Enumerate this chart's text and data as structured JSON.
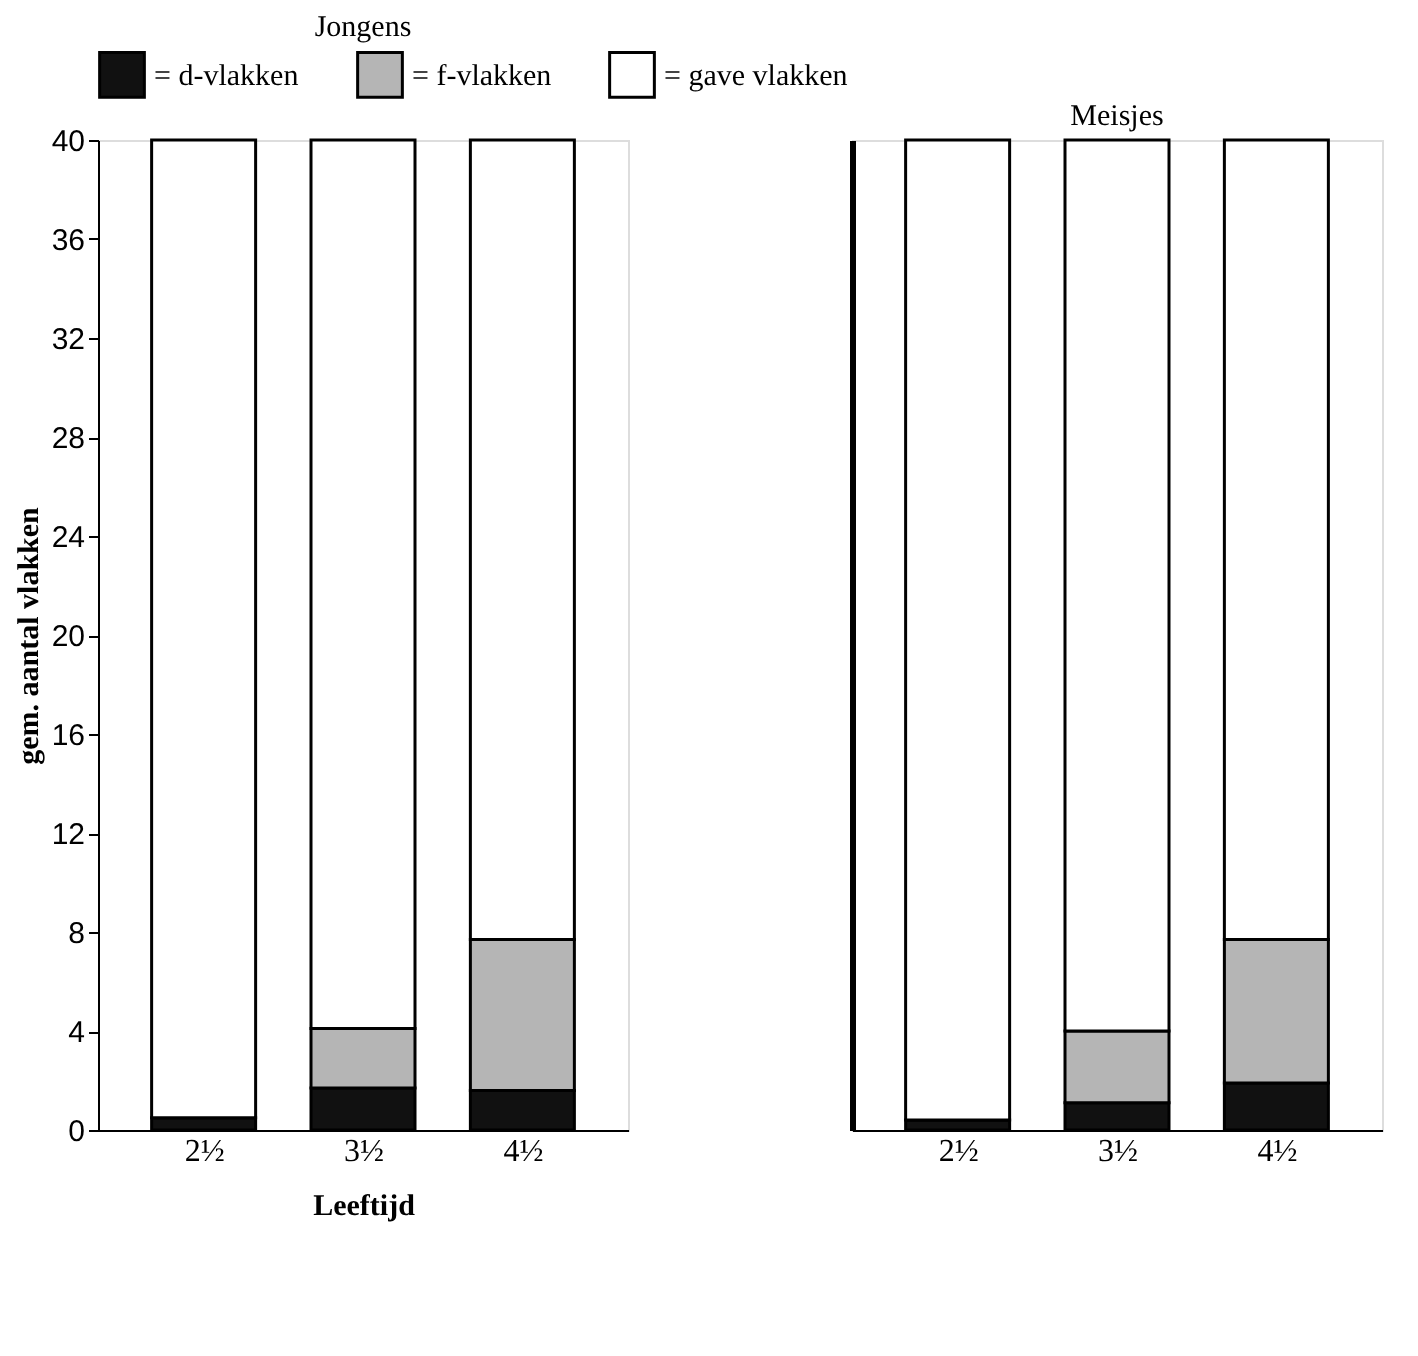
{
  "chart_data": [
    {
      "type": "bar",
      "stacked": true,
      "title": "Jongens",
      "xlabel": "Leeftijd",
      "ylabel": "gem. aantal vlakken",
      "categories": [
        "2½",
        "3½",
        "4½"
      ],
      "ylim": [
        0,
        40
      ],
      "yticks": [
        0,
        4,
        8,
        12,
        16,
        20,
        24,
        28,
        32,
        36,
        40
      ],
      "grid": false,
      "legend": "top",
      "series": [
        {
          "name": "= d-vlakken",
          "color": "#111111",
          "values": [
            0.5,
            1.7,
            1.6
          ]
        },
        {
          "name": "= f-vlakken",
          "color": "#b5b5b5",
          "values": [
            0,
            2.4,
            6.1
          ]
        },
        {
          "name": "= gave vlakken",
          "color": "#ffffff",
          "values": [
            39.5,
            35.9,
            32.3
          ]
        }
      ]
    },
    {
      "type": "bar",
      "stacked": true,
      "title": "Meisjes",
      "categories": [
        "2½",
        "3½",
        "4½"
      ],
      "ylim": [
        0,
        40
      ],
      "yticks": [
        0,
        4,
        8,
        12,
        16,
        20,
        24,
        28,
        32,
        36,
        40
      ],
      "grid": false,
      "tick_labels": "x",
      "series": [
        {
          "color": "#111111",
          "values": [
            0.4,
            1.1,
            1.9
          ]
        },
        {
          "color": "#b5b5b5",
          "values": [
            0,
            2.9,
            5.8
          ]
        },
        {
          "color": "#ffffff",
          "values": [
            39.6,
            36.0,
            32.3
          ]
        }
      ]
    }
  ]
}
